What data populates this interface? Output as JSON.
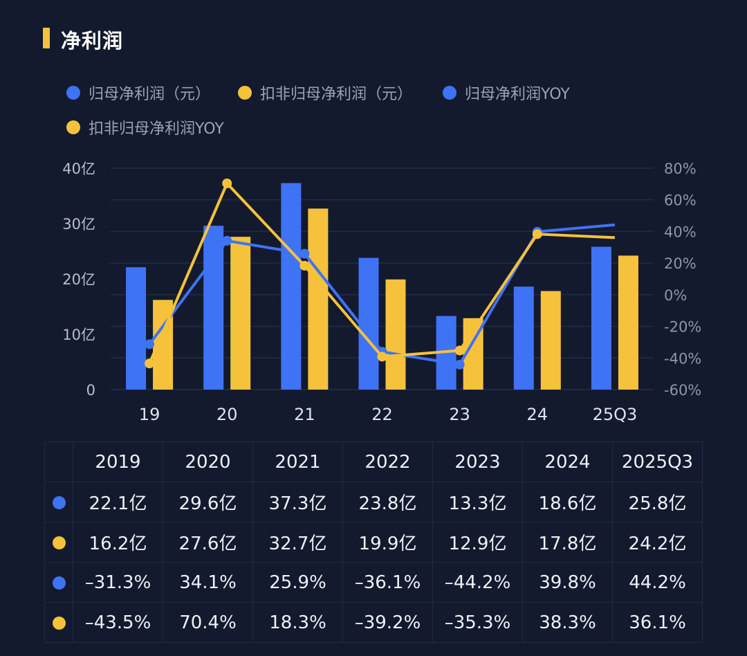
{
  "title": "净利润",
  "legend": [
    {
      "label": "归母净利润（元）",
      "color": "#3f73f5",
      "kind": "bar"
    },
    {
      "label": "扣非归母净利润（元）",
      "color": "#f7c23b",
      "kind": "bar"
    },
    {
      "label": "归母净利润YOY",
      "color": "#3f73f5",
      "kind": "line"
    },
    {
      "label": "扣非归母净利润YOY",
      "color": "#f7c23b",
      "kind": "line"
    }
  ],
  "chart_data": {
    "type": "bar",
    "title": "净利润",
    "categories": [
      "19",
      "20",
      "21",
      "22",
      "23",
      "24",
      "25Q3"
    ],
    "series": [
      {
        "name": "归母净利润（元）",
        "type": "bar",
        "axis": "left",
        "unit": "亿",
        "values": [
          22.1,
          29.6,
          37.3,
          23.8,
          13.3,
          18.6,
          25.8
        ]
      },
      {
        "name": "扣非归母净利润（元）",
        "type": "bar",
        "axis": "left",
        "unit": "亿",
        "values": [
          16.2,
          27.6,
          32.7,
          19.9,
          12.9,
          17.8,
          24.2
        ]
      },
      {
        "name": "归母净利润YOY",
        "type": "line",
        "axis": "right",
        "unit": "%",
        "values": [
          -31.3,
          34.1,
          25.9,
          -36.1,
          -44.2,
          39.8,
          44.2
        ]
      },
      {
        "name": "扣非归母净利润YOY",
        "type": "line",
        "axis": "right",
        "unit": "%",
        "values": [
          -43.5,
          70.4,
          18.3,
          -39.2,
          -35.3,
          38.3,
          36.1
        ]
      }
    ],
    "left_axis": {
      "ylim": [
        0,
        40
      ],
      "ticks": [
        "0",
        "10亿",
        "20亿",
        "30亿",
        "40亿"
      ]
    },
    "right_axis": {
      "ylim": [
        -60,
        80
      ],
      "ticks": [
        "-60%",
        "-40%",
        "-20%",
        "0%",
        "20%",
        "40%",
        "60%",
        "80%"
      ]
    },
    "grid": true,
    "legend_position": "top-left"
  },
  "table": {
    "headers": [
      "2019",
      "2020",
      "2021",
      "2022",
      "2023",
      "2024",
      "2025Q3"
    ],
    "rows": [
      {
        "color": "#3f73f5",
        "cells": [
          "22.1亿",
          "29.6亿",
          "37.3亿",
          "23.8亿",
          "13.3亿",
          "18.6亿",
          "25.8亿"
        ]
      },
      {
        "color": "#f7c23b",
        "cells": [
          "16.2亿",
          "27.6亿",
          "32.7亿",
          "19.9亿",
          "12.9亿",
          "17.8亿",
          "24.2亿"
        ]
      },
      {
        "color": "#3f73f5",
        "cells": [
          "–31.3%",
          "34.1%",
          "25.9%",
          "–36.1%",
          "–44.2%",
          "39.8%",
          "44.2%"
        ]
      },
      {
        "color": "#f7c23b",
        "cells": [
          "–43.5%",
          "70.4%",
          "18.3%",
          "–39.2%",
          "–35.3%",
          "38.3%",
          "36.1%"
        ]
      }
    ]
  }
}
